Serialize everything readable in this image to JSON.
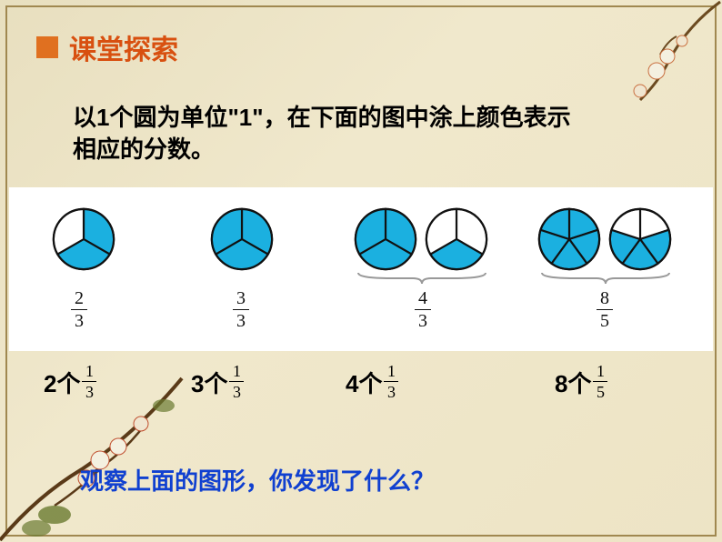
{
  "header": {
    "bullet_color": "#e07020",
    "title": "课堂探索"
  },
  "instruction": "以1个圆为单位\"1\"，在下面的图中涂上颜色表示相应的分数。",
  "colors": {
    "fill": "#1bb0e0",
    "stroke": "#111111",
    "background_band": "#ffffff",
    "slide_top": "#e8dfbf",
    "slide_bottom": "#ede4c5",
    "frame": "#a08850"
  },
  "groups": [
    {
      "circles": [
        {
          "segments": 3,
          "filled": [
            0,
            1
          ]
        }
      ],
      "fraction": {
        "n": "2",
        "d": "3"
      },
      "expression": {
        "count": "2",
        "unit_n": "1",
        "unit_d": "3"
      },
      "brace": false
    },
    {
      "circles": [
        {
          "segments": 3,
          "filled": [
            0,
            1,
            2
          ]
        }
      ],
      "fraction": {
        "n": "3",
        "d": "3"
      },
      "expression": {
        "count": "3",
        "unit_n": "1",
        "unit_d": "3"
      },
      "brace": false
    },
    {
      "circles": [
        {
          "segments": 3,
          "filled": [
            0,
            1,
            2
          ]
        },
        {
          "segments": 3,
          "filled": [
            1
          ]
        }
      ],
      "fraction": {
        "n": "4",
        "d": "3"
      },
      "expression": {
        "count": "4",
        "unit_n": "1",
        "unit_d": "3"
      },
      "brace": true
    },
    {
      "circles": [
        {
          "segments": 5,
          "filled": [
            0,
            1,
            2,
            3,
            4
          ]
        },
        {
          "segments": 5,
          "filled": [
            1,
            2,
            3
          ]
        }
      ],
      "fraction": {
        "n": "8",
        "d": "5"
      },
      "expression": {
        "count": "8",
        "unit_n": "1",
        "unit_d": "5"
      },
      "brace": true
    }
  ],
  "question": "观察上面的图形，你发现了什么？",
  "ge_word": "个"
}
